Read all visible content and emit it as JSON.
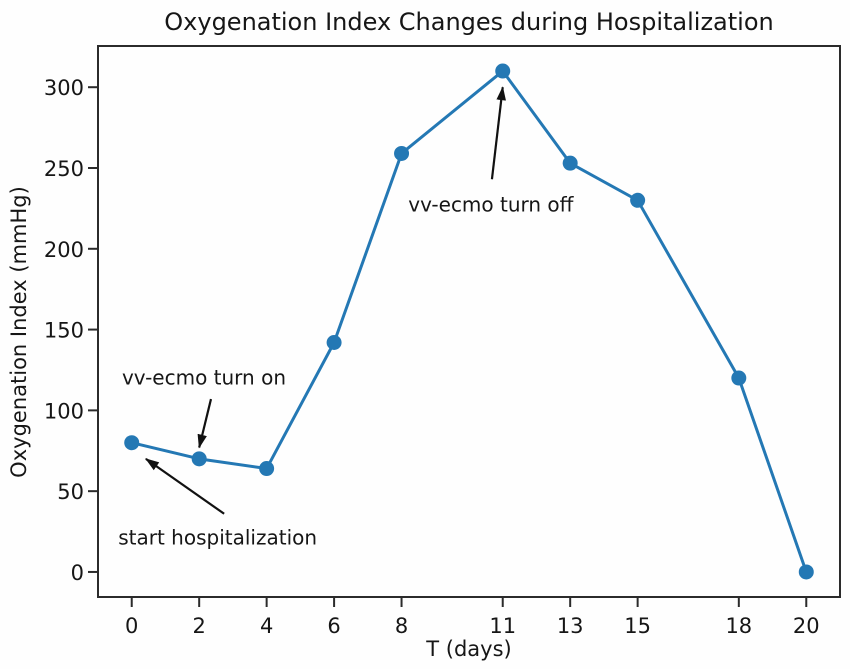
{
  "figure": {
    "background": "#fefefe",
    "frame_color": "#2b2b2b",
    "text_color": "#161616"
  },
  "chart_data": {
    "type": "line",
    "title": "Oxygenation Index Changes during Hospitalization",
    "xlabel": "T (days)",
    "ylabel": "Oxygenation Index (mmHg)",
    "x": [
      0,
      2,
      4,
      6,
      8,
      11,
      13,
      15,
      18,
      20
    ],
    "series": [
      {
        "name": "Oxygenation Index",
        "values": [
          80,
          70,
          64,
          142,
          259,
          310,
          253,
          230,
          120,
          0
        ]
      }
    ],
    "xticks": [
      0,
      2,
      4,
      6,
      8,
      11,
      13,
      15,
      18,
      20
    ],
    "yticks": [
      0,
      50,
      100,
      150,
      200,
      250,
      300
    ],
    "xlim": [
      -1,
      21
    ],
    "ylim": [
      -15.5,
      325.5
    ],
    "grid": false,
    "legend": null,
    "line_color": "#2478b4",
    "marker": "circle",
    "annotation_color": "#111111",
    "annotations": [
      {
        "text": "start hospitalization",
        "text_xy": [
          -0.4,
          17
        ],
        "arrow_from": [
          2.74,
          36
        ],
        "arrow_to": [
          0.42,
          70
        ]
      },
      {
        "text": "vv-ecmo turn on",
        "text_xy": [
          -0.29,
          116
        ],
        "arrow_from": [
          2.35,
          107
        ],
        "arrow_to": [
          2.0,
          77
        ]
      },
      {
        "text": "vv-ecmo turn off",
        "text_xy": [
          8.2,
          223
        ],
        "arrow_from": [
          10.68,
          243
        ],
        "arrow_to": [
          11.0,
          300
        ]
      }
    ]
  }
}
